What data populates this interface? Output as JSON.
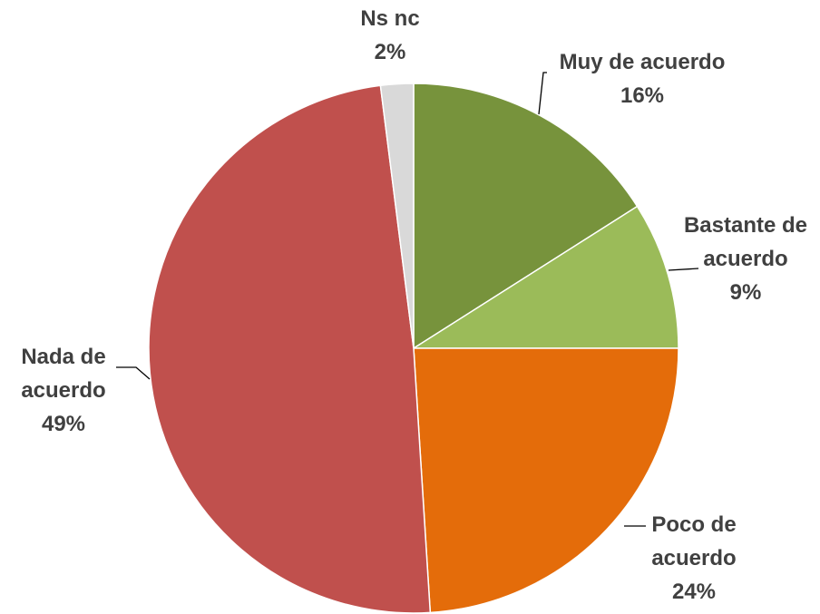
{
  "chart_data": {
    "type": "pie",
    "categories": [
      "Muy de acuerdo",
      "Bastante de acuerdo",
      "Poco de acuerdo",
      "Nada de acuerdo",
      "Ns nc"
    ],
    "values": [
      16,
      9,
      24,
      49,
      2
    ],
    "value_labels": [
      "16%",
      "9%",
      "24%",
      "49%",
      "2%"
    ],
    "colors": [
      "#77933c",
      "#9bbb59",
      "#e46c0a",
      "#c0504d",
      "#d9d9d9"
    ]
  }
}
